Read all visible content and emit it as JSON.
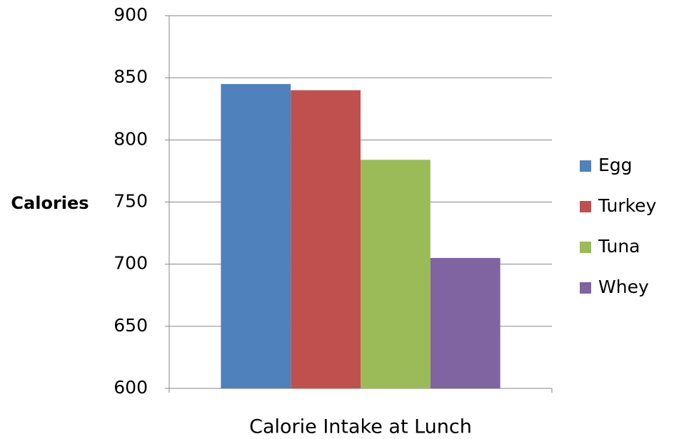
{
  "chart_data": {
    "type": "bar",
    "y_label": "Calories",
    "categories": [
      "Calorie Intake at Lunch"
    ],
    "series": [
      {
        "name": "Egg",
        "color": "#4f81bd",
        "values": [
          845
        ]
      },
      {
        "name": "Turkey",
        "color": "#c0504d",
        "values": [
          840
        ]
      },
      {
        "name": "Tuna",
        "color": "#9bbb59",
        "values": [
          784
        ]
      },
      {
        "name": "Whey",
        "color": "#8064a2",
        "values": [
          705
        ]
      }
    ],
    "ylim": [
      600,
      900
    ],
    "yticks": [
      600,
      650,
      700,
      750,
      800,
      850,
      900
    ],
    "grid": true,
    "legend": "right"
  }
}
